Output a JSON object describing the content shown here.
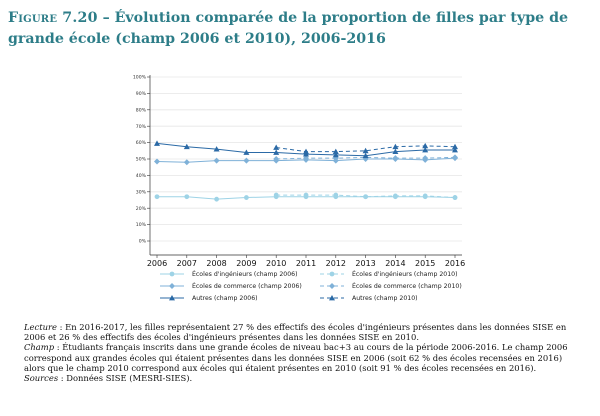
{
  "figure_title": {
    "prefix": "Figure 7.20",
    "text": " – Évolution comparée de la proportion de filles par type de grande école (champ 2006 et 2010), 2006-2016"
  },
  "chart_data": {
    "type": "line",
    "x": [
      2006,
      2007,
      2008,
      2009,
      2010,
      2011,
      2012,
      2013,
      2014,
      2015,
      2016
    ],
    "x_tick_labels": [
      "2006",
      "2007",
      "2008",
      "2009",
      "2010",
      "2011",
      "2012",
      "2013",
      "2014",
      "2015",
      "2016"
    ],
    "y_tick_values": [
      0,
      10,
      20,
      30,
      40,
      50,
      60,
      70,
      80,
      90,
      100
    ],
    "y_tick_labels": [
      "0%",
      "10%",
      "20%",
      "30%",
      "40%",
      "50%",
      "60%",
      "70%",
      "80%",
      "90%",
      "100%"
    ],
    "ylim": [
      0,
      100
    ],
    "grid": true,
    "legend_position": "bottom",
    "series": [
      {
        "name": "Écoles d'ingénieurs (champ 2006)",
        "color": "#9ed3e6",
        "marker": "circle",
        "dash": "solid",
        "values": [
          27,
          27,
          25.5,
          26.5,
          27,
          27,
          27,
          27,
          27,
          27,
          26.5
        ]
      },
      {
        "name": "Écoles d'ingénieurs (champ 2010)",
        "color": "#9ed3e6",
        "marker": "circle",
        "dash": "dashed",
        "values": [
          null,
          null,
          null,
          null,
          28,
          28,
          28,
          27,
          27.5,
          27.5,
          26.5
        ]
      },
      {
        "name": "Écoles de commerce (champ 2006)",
        "color": "#7fb1d8",
        "marker": "diamond",
        "dash": "solid",
        "values": [
          48.5,
          48,
          49,
          49,
          49,
          49.5,
          49,
          50,
          50,
          49.5,
          50.5
        ]
      },
      {
        "name": "Écoles de commerce (champ 2010)",
        "color": "#7fb1d8",
        "marker": "diamond",
        "dash": "dashed",
        "values": [
          null,
          null,
          null,
          null,
          50,
          50.5,
          50.5,
          51,
          50.5,
          50.5,
          51
        ]
      },
      {
        "name": "Autres (champ 2006)",
        "color": "#2b6aa6",
        "marker": "triangle",
        "dash": "solid",
        "values": [
          59.5,
          57.5,
          56,
          54,
          54,
          53,
          52.5,
          52,
          54.5,
          55.5,
          55.5
        ]
      },
      {
        "name": "Autres (champ 2010)",
        "color": "#2b6aa6",
        "marker": "triangle",
        "dash": "dashed",
        "values": [
          null,
          null,
          null,
          null,
          57,
          54.5,
          54.5,
          55,
          57.5,
          58,
          57.5
        ]
      }
    ]
  },
  "notes": {
    "lecture_label": "Lecture",
    "lecture_text": " : En 2016-2017, les filles représentaient 27 % des effectifs des écoles d'ingénieurs présentes dans les données SISE en 2006 et 26 % des effectifs des écoles d'ingénieurs présentes dans les données SISE en 2010.",
    "champ_label": "Champ",
    "champ_text": " : Étudiants français inscrits dans une grande écoles de niveau bac+3 au cours de la période 2006-2016. Le champ 2006 correspond aux grandes écoles qui étaient présentes dans les données SISE en 2006 (soit 62 % des écoles recensées en 2016) alors que le champ 2010 correspond aux écoles qui étaient présentes en 2010 (soit 91 % des écoles recensées en 2016).",
    "sources_label": "Sources",
    "sources_text": " : Données SISE (MESRI-SIES)."
  }
}
